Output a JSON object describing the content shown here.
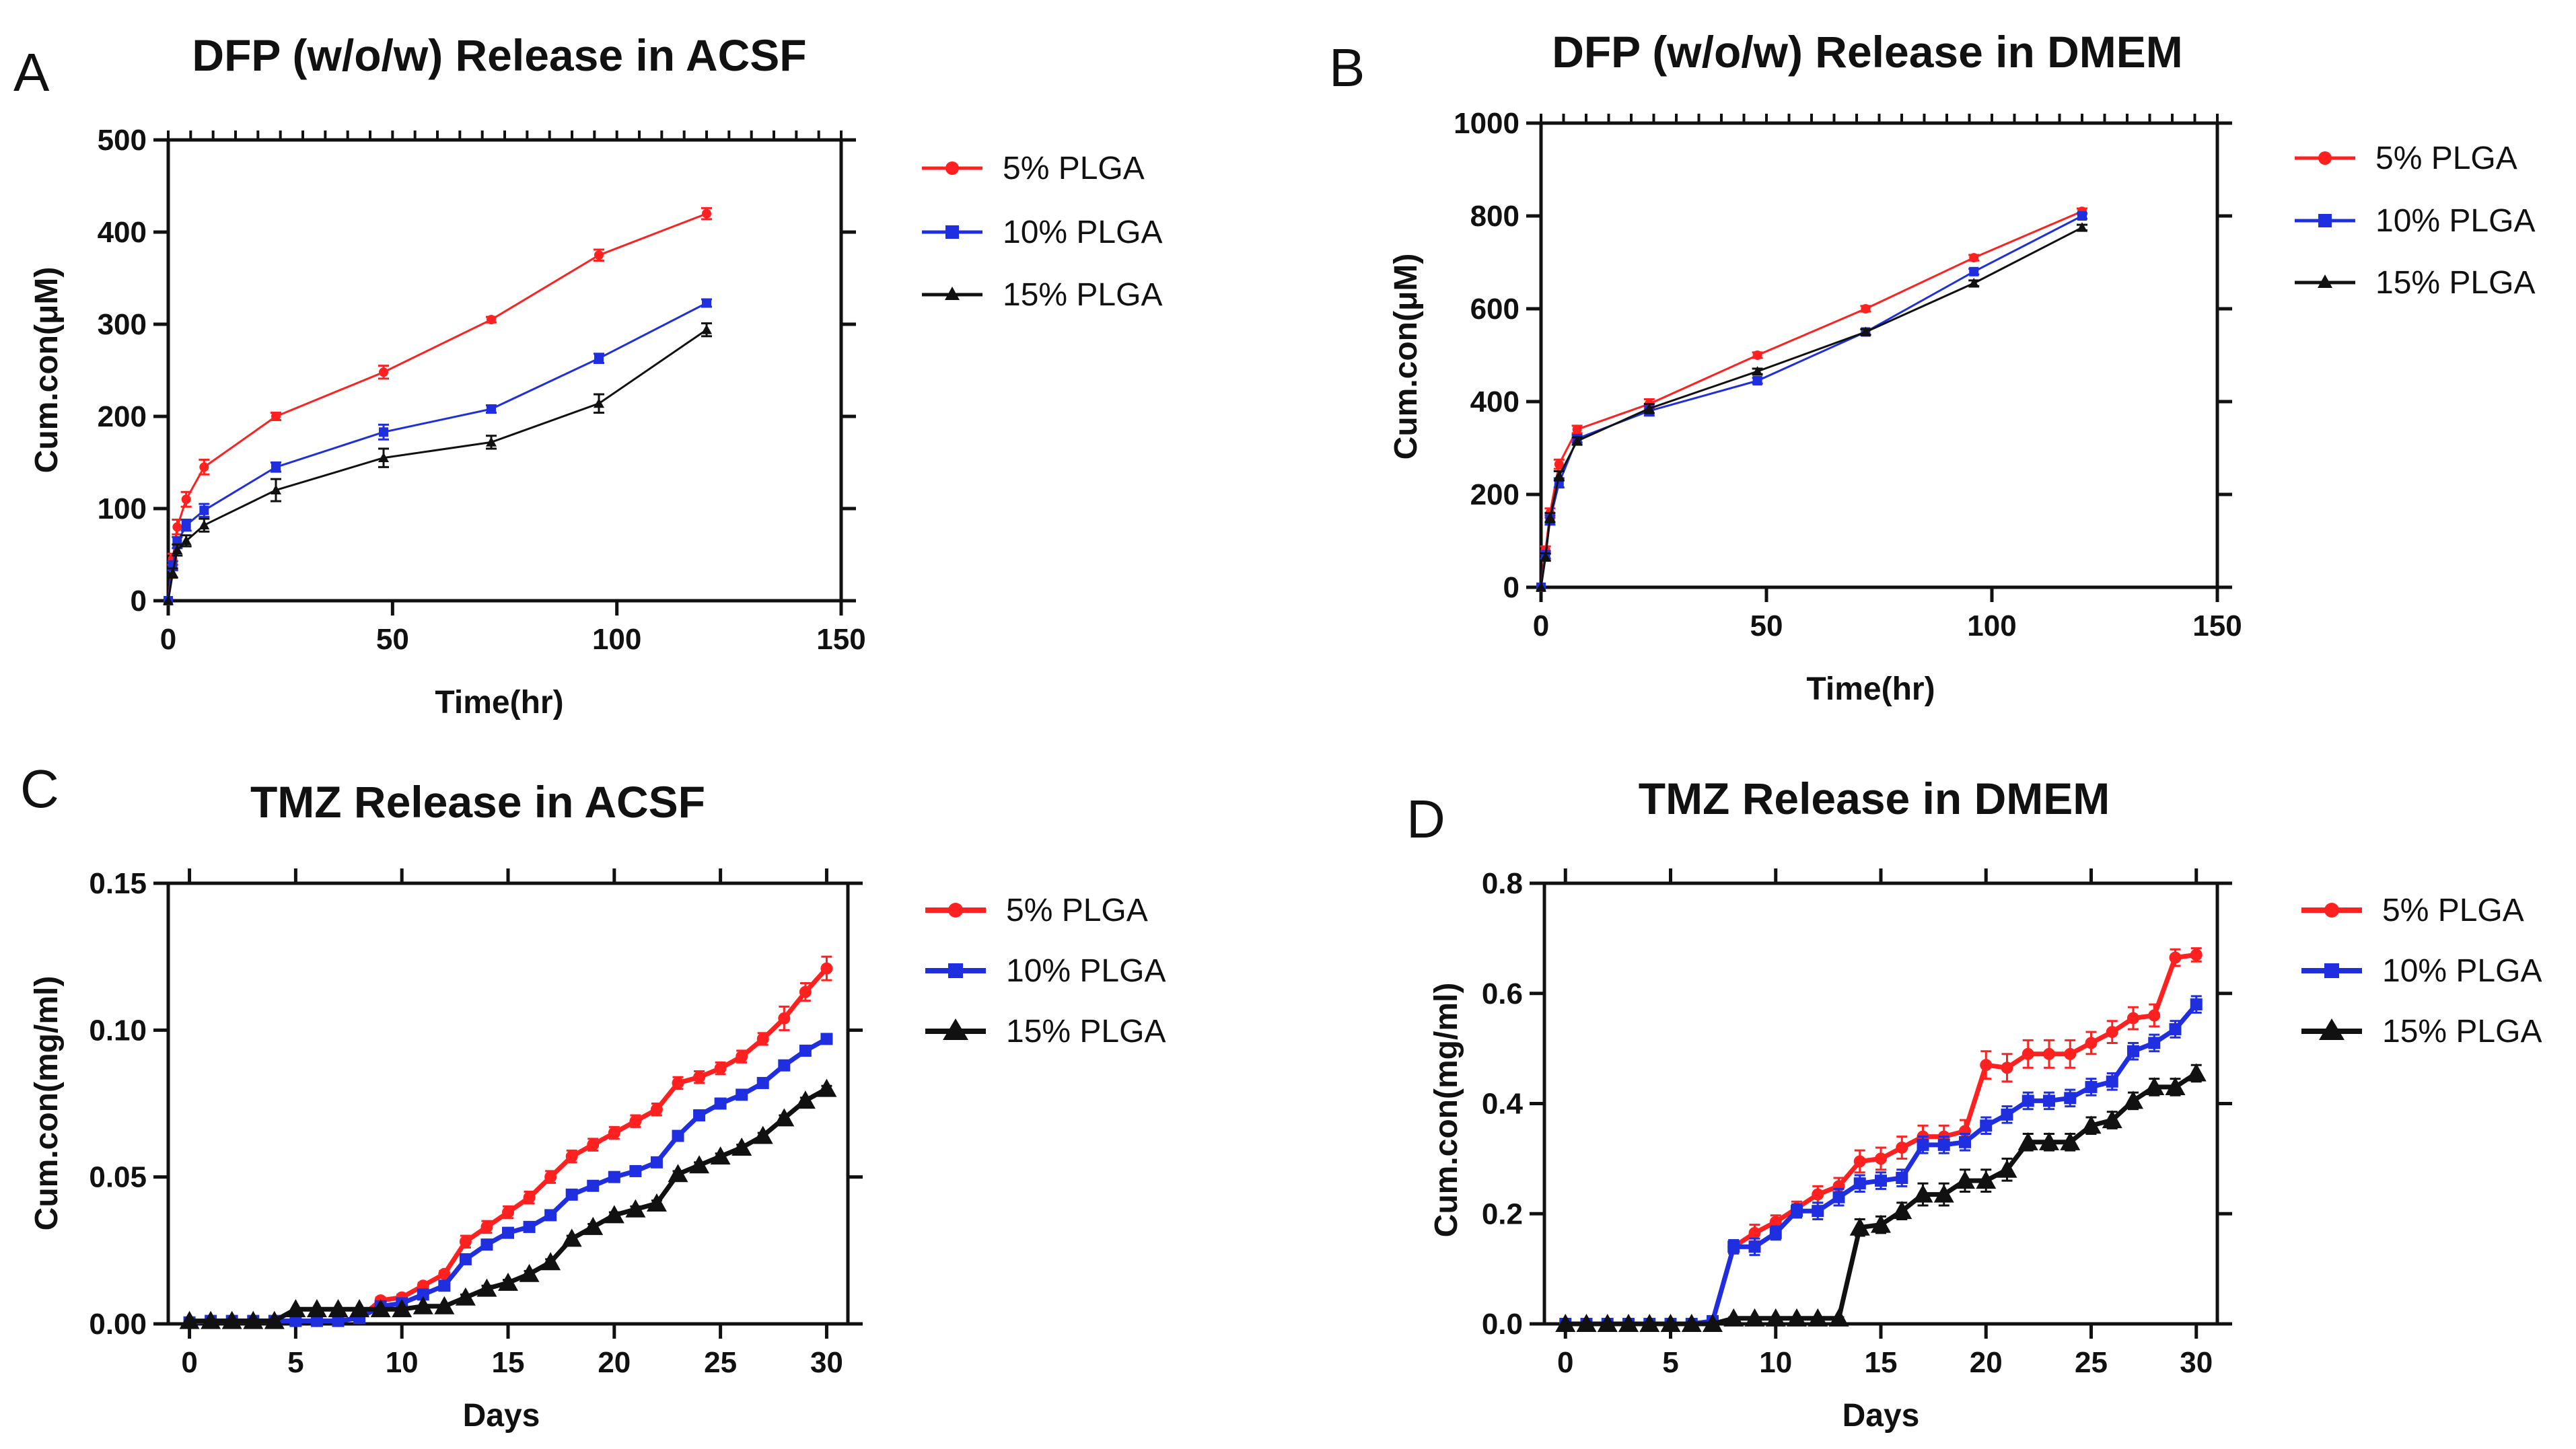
{
  "chart_data": [
    {
      "panel": "A",
      "type": "line",
      "title": "DFP (w/o/w) Release in ACSF",
      "xlabel": "Time(hr)",
      "ylabel": "Cum.con(μM)",
      "xlim": [
        0,
        150
      ],
      "ylim": [
        0,
        500
      ],
      "xticks": [
        0,
        50,
        100,
        150
      ],
      "yticks": [
        0,
        100,
        200,
        300,
        400,
        500
      ],
      "top_minor_ticks": 30,
      "grid": false,
      "legend_position": "right",
      "x": [
        0,
        1,
        2,
        4,
        8,
        24,
        48,
        72,
        96,
        120
      ],
      "series": [
        {
          "name": "5% PLGA",
          "color": "#ff2020",
          "marker": "circle",
          "values": [
            0,
            45,
            80,
            110,
            145,
            200,
            248,
            305,
            375,
            420
          ],
          "errors": [
            0,
            6,
            8,
            8,
            8,
            4,
            7,
            3,
            6,
            6
          ]
        },
        {
          "name": "10% PLGA",
          "color": "#1f2fe0",
          "marker": "square",
          "values": [
            0,
            38,
            63,
            82,
            98,
            145,
            183,
            208,
            263,
            323
          ],
          "errors": [
            0,
            5,
            6,
            6,
            7,
            5,
            8,
            4,
            5,
            4
          ]
        },
        {
          "name": "15% PLGA",
          "color": "#111111",
          "marker": "triangle",
          "values": [
            0,
            30,
            55,
            65,
            82,
            120,
            155,
            172,
            214,
            294
          ],
          "errors": [
            0,
            5,
            6,
            6,
            7,
            12,
            10,
            7,
            10,
            7
          ]
        }
      ]
    },
    {
      "panel": "B",
      "type": "line",
      "title": "DFP (w/o/w) Release in DMEM",
      "xlabel": "Time(hr)",
      "ylabel": "Cum.con(μM)",
      "xlim": [
        0,
        150
      ],
      "ylim": [
        0,
        1000
      ],
      "xticks": [
        0,
        50,
        100,
        150
      ],
      "yticks": [
        0,
        200,
        400,
        600,
        800,
        1000
      ],
      "top_minor_ticks": 30,
      "grid": false,
      "legend_position": "right",
      "x": [
        0,
        1,
        2,
        4,
        8,
        24,
        48,
        72,
        96,
        120
      ],
      "series": [
        {
          "name": "5% PLGA",
          "color": "#ff2020",
          "marker": "circle",
          "values": [
            0,
            80,
            160,
            265,
            340,
            395,
            500,
            600,
            710,
            810
          ],
          "errors": [
            0,
            8,
            10,
            10,
            8,
            10,
            6,
            6,
            6,
            6
          ]
        },
        {
          "name": "10% PLGA",
          "color": "#1f2fe0",
          "marker": "square",
          "values": [
            0,
            70,
            145,
            225,
            320,
            380,
            445,
            550,
            680,
            800
          ],
          "errors": [
            0,
            8,
            10,
            10,
            8,
            10,
            6,
            6,
            6,
            6
          ]
        },
        {
          "name": "15% PLGA",
          "color": "#111111",
          "marker": "triangle",
          "values": [
            0,
            65,
            150,
            240,
            315,
            385,
            465,
            550,
            655,
            775
          ],
          "errors": [
            0,
            8,
            10,
            10,
            8,
            10,
            6,
            6,
            6,
            6
          ]
        }
      ]
    },
    {
      "panel": "C",
      "type": "line",
      "title": "TMZ Release in ACSF",
      "xlabel": "Days",
      "ylabel": "Cum.con(mg/ml)",
      "xlim": [
        -1,
        31
      ],
      "ylim": [
        0,
        0.15
      ],
      "xticks": [
        0,
        5,
        10,
        15,
        20,
        25,
        30
      ],
      "ytick_labels": [
        "0.00",
        "0.05",
        "0.10",
        "0.15"
      ],
      "grid": false,
      "legend_position": "right",
      "x": [
        0,
        1,
        2,
        3,
        4,
        5,
        6,
        7,
        8,
        9,
        10,
        11,
        12,
        13,
        14,
        15,
        16,
        17,
        18,
        19,
        20,
        21,
        22,
        23,
        24,
        25,
        26,
        27,
        28,
        29,
        30
      ],
      "series": [
        {
          "name": "5% PLGA",
          "color": "#ff2020",
          "marker": "circle",
          "values": [
            0.0005,
            0.001,
            0.001,
            0.001,
            0.001,
            0.001,
            0.001,
            0.001,
            0.002,
            0.008,
            0.009,
            0.013,
            0.017,
            0.028,
            0.033,
            0.038,
            0.043,
            0.05,
            0.057,
            0.061,
            0.065,
            0.069,
            0.073,
            0.082,
            0.084,
            0.087,
            0.091,
            0.097,
            0.104,
            0.113,
            0.121
          ],
          "errors": [
            0,
            0,
            0,
            0,
            0,
            0,
            0,
            0,
            0,
            0.001,
            0.001,
            0.001,
            0.001,
            0.002,
            0.002,
            0.002,
            0.002,
            0.002,
            0.002,
            0.002,
            0.002,
            0.002,
            0.002,
            0.002,
            0.002,
            0.002,
            0.002,
            0.002,
            0.004,
            0.003,
            0.004
          ]
        },
        {
          "name": "10% PLGA",
          "color": "#1f2fe0",
          "marker": "square",
          "values": [
            0.0005,
            0.001,
            0.001,
            0.001,
            0.001,
            0.001,
            0.001,
            0.001,
            0.002,
            0.006,
            0.007,
            0.01,
            0.013,
            0.022,
            0.027,
            0.031,
            0.033,
            0.037,
            0.044,
            0.047,
            0.05,
            0.052,
            0.055,
            0.064,
            0.071,
            0.075,
            0.078,
            0.082,
            0.088,
            0.093,
            0.097
          ],
          "errors": [
            0,
            0,
            0,
            0,
            0,
            0,
            0,
            0,
            0,
            0.001,
            0.001,
            0.001,
            0.001,
            0.001,
            0.001,
            0.001,
            0.001,
            0.001,
            0.001,
            0.001,
            0.001,
            0.001,
            0.001,
            0.001,
            0.001,
            0.001,
            0.001,
            0.001,
            0.001,
            0.001,
            0.001
          ]
        },
        {
          "name": "15% PLGA",
          "color": "#111111",
          "marker": "triangle",
          "values": [
            0.001,
            0.001,
            0.001,
            0.001,
            0.001,
            0.005,
            0.005,
            0.005,
            0.005,
            0.005,
            0.005,
            0.006,
            0.006,
            0.009,
            0.012,
            0.014,
            0.017,
            0.021,
            0.029,
            0.033,
            0.037,
            0.039,
            0.041,
            0.051,
            0.054,
            0.057,
            0.06,
            0.064,
            0.07,
            0.076,
            0.08
          ],
          "errors": [
            0,
            0,
            0,
            0,
            0,
            0,
            0,
            0,
            0,
            0,
            0,
            0,
            0,
            0.001,
            0.001,
            0.001,
            0.001,
            0.001,
            0.001,
            0.001,
            0.001,
            0.001,
            0.001,
            0.001,
            0.001,
            0.001,
            0.001,
            0.001,
            0.001,
            0.001,
            0.001
          ]
        }
      ]
    },
    {
      "panel": "D",
      "type": "line",
      "title": "TMZ Release in DMEM",
      "xlabel": "Days",
      "ylabel": "Cum.con(mg/ml)",
      "xlim": [
        -1,
        31
      ],
      "ylim": [
        0,
        0.8
      ],
      "xticks": [
        0,
        5,
        10,
        15,
        20,
        25,
        30
      ],
      "ytick_labels": [
        "0.0",
        "0.2",
        "0.4",
        "0.6",
        "0.8"
      ],
      "grid": false,
      "legend_position": "right",
      "x": [
        0,
        1,
        2,
        3,
        4,
        5,
        6,
        7,
        8,
        9,
        10,
        11,
        12,
        13,
        14,
        15,
        16,
        17,
        18,
        19,
        20,
        21,
        22,
        23,
        24,
        25,
        26,
        27,
        28,
        29,
        30
      ],
      "series": [
        {
          "name": "5% PLGA",
          "color": "#ff2020",
          "marker": "circle",
          "values": [
            0,
            0,
            0,
            0,
            0,
            0,
            0,
            0.005,
            0.14,
            0.165,
            0.185,
            0.21,
            0.235,
            0.25,
            0.295,
            0.3,
            0.32,
            0.34,
            0.34,
            0.35,
            0.47,
            0.465,
            0.49,
            0.49,
            0.49,
            0.51,
            0.53,
            0.555,
            0.56,
            0.665,
            0.67
          ],
          "errors": [
            0,
            0,
            0,
            0,
            0,
            0,
            0,
            0.003,
            0.012,
            0.015,
            0.012,
            0.012,
            0.015,
            0.015,
            0.02,
            0.02,
            0.02,
            0.02,
            0.02,
            0.02,
            0.025,
            0.025,
            0.025,
            0.025,
            0.025,
            0.02,
            0.02,
            0.02,
            0.02,
            0.015,
            0.012
          ]
        },
        {
          "name": "10% PLGA",
          "color": "#1f2fe0",
          "marker": "square",
          "values": [
            0,
            0,
            0,
            0,
            0,
            0,
            0,
            0.005,
            0.14,
            0.14,
            0.165,
            0.205,
            0.205,
            0.23,
            0.255,
            0.26,
            0.265,
            0.325,
            0.325,
            0.33,
            0.36,
            0.38,
            0.405,
            0.405,
            0.41,
            0.43,
            0.44,
            0.495,
            0.51,
            0.535,
            0.58
          ],
          "errors": [
            0,
            0,
            0,
            0,
            0,
            0,
            0,
            0.003,
            0.012,
            0.015,
            0.012,
            0.012,
            0.015,
            0.015,
            0.015,
            0.015,
            0.015,
            0.015,
            0.015,
            0.015,
            0.015,
            0.015,
            0.015,
            0.015,
            0.015,
            0.015,
            0.015,
            0.015,
            0.015,
            0.015,
            0.015
          ]
        },
        {
          "name": "15% PLGA",
          "color": "#111111",
          "marker": "triangle",
          "values": [
            0,
            0,
            0,
            0,
            0,
            0,
            0,
            0,
            0.01,
            0.01,
            0.01,
            0.01,
            0.01,
            0.01,
            0.175,
            0.18,
            0.205,
            0.235,
            0.235,
            0.26,
            0.26,
            0.28,
            0.33,
            0.33,
            0.33,
            0.36,
            0.37,
            0.405,
            0.43,
            0.43,
            0.455
          ],
          "errors": [
            0,
            0,
            0,
            0,
            0,
            0,
            0,
            0,
            0.002,
            0.002,
            0.002,
            0.002,
            0.002,
            0.002,
            0.015,
            0.015,
            0.015,
            0.02,
            0.02,
            0.02,
            0.02,
            0.02,
            0.015,
            0.015,
            0.015,
            0.015,
            0.015,
            0.015,
            0.015,
            0.015,
            0.015
          ]
        }
      ]
    }
  ]
}
